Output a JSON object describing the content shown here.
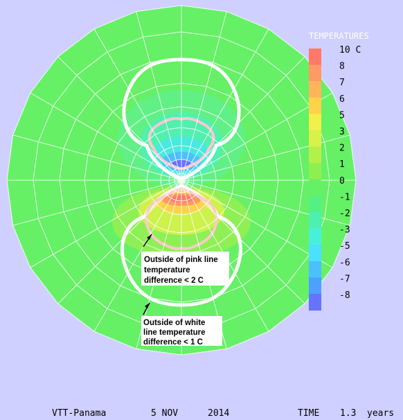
{
  "legend": {
    "title": "TEMPERATURES",
    "entries": [
      {
        "label": "10 C",
        "color": "#ff7a66"
      },
      {
        "label": "8",
        "color": "#ff9966"
      },
      {
        "label": "7",
        "color": "#ffb45c"
      },
      {
        "label": "6",
        "color": "#ffd24a"
      },
      {
        "label": "5",
        "color": "#f2f04a"
      },
      {
        "label": "3",
        "color": "#d8f24a"
      },
      {
        "label": "2",
        "color": "#b5f04a"
      },
      {
        "label": "1",
        "color": "#8ef050"
      },
      {
        "label": "0",
        "color": "#66f066"
      },
      {
        "label": "-1",
        "color": "#55f085"
      },
      {
        "label": "-2",
        "color": "#4cf0b0"
      },
      {
        "label": "-3",
        "color": "#48f0dc"
      },
      {
        "label": "-5",
        "color": "#4ce0ff"
      },
      {
        "label": "-6",
        "color": "#4cc0ff"
      },
      {
        "label": "-7",
        "color": "#4ca0ff"
      },
      {
        "label": "-8",
        "color": "#6673ff"
      }
    ]
  },
  "annotations": {
    "pink": [
      "Outside of pink line",
      "temperature",
      "difference < 2 C"
    ],
    "white": [
      "Outside of white",
      "line temperature",
      "difference < 1 C"
    ]
  },
  "footer": {
    "location": "VTT-Panama",
    "date": "5 NOV",
    "year": "2014",
    "time_label": "TIME",
    "time_value": "1.3",
    "time_unit": "years"
  },
  "chart_data": {
    "type": "heatmap",
    "projection": "polar",
    "title": "",
    "colorbar_title": "TEMPERATURES",
    "colorbar_levels": [
      "10 C",
      "8",
      "7",
      "6",
      "5",
      "3",
      "2",
      "1",
      "0",
      "-1",
      "-2",
      "-3",
      "-5",
      "-6",
      "-7",
      "-8"
    ],
    "grid": true,
    "contours": [
      {
        "color": "white",
        "meaning": "temperature difference < 1 C outside"
      },
      {
        "color": "pink",
        "meaning": "temperature difference < 2 C outside"
      }
    ],
    "regions": [
      {
        "location": "upper center",
        "value_range": [
          -8,
          -1
        ]
      },
      {
        "location": "lower center",
        "value_range": [
          1,
          10
        ]
      },
      {
        "location": "outer field",
        "value_range": [
          -1,
          0
        ]
      }
    ]
  },
  "colors": {
    "background": "#cfd0ff",
    "field": "#66f066",
    "grid": "#ffffff",
    "pink_line": "#ffc8cc"
  }
}
